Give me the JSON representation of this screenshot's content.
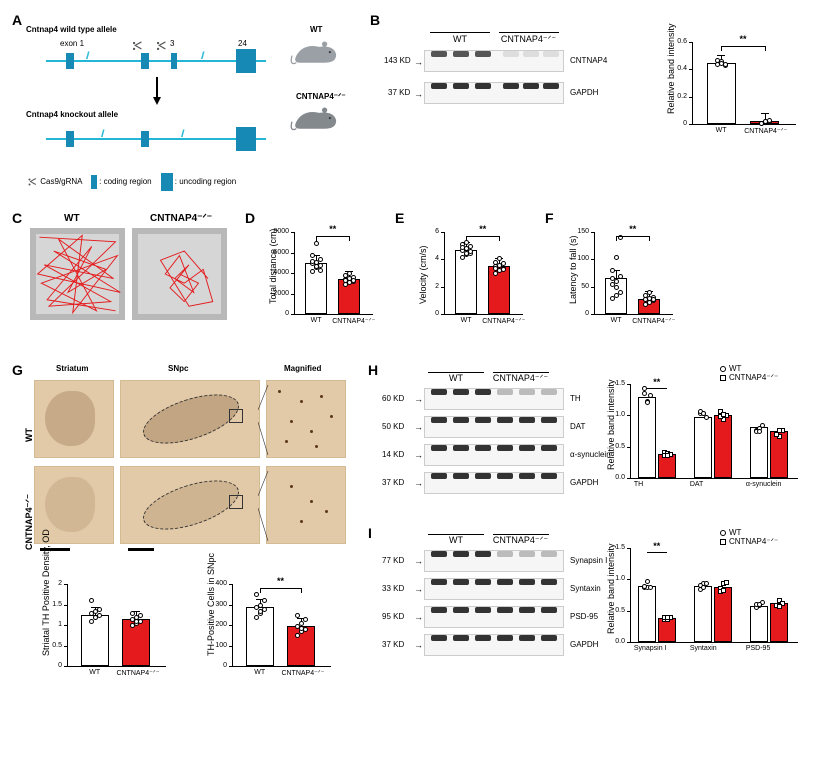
{
  "panels": {
    "A": {
      "title_wt": "Cntnap4 wild type allele",
      "title_ko": "Cntnap4 knockout allele",
      "exons": [
        "exon 1",
        "3",
        "24"
      ],
      "legend": {
        "cas9": "Cas9/gRNA",
        "coding": "coding region",
        "uncoding": "uncoding region"
      },
      "mouse_labels": {
        "wt": "WT",
        "ko": "CNTNAP4⁻ᐟ⁻"
      },
      "colors": {
        "bar": "#24b6d6",
        "exon": "#168ab5"
      }
    },
    "B": {
      "groups": [
        "WT",
        "CNTNAP4⁻ᐟ⁻"
      ],
      "markers": [
        "143 KD",
        "37 KD"
      ],
      "proteins": [
        "CNTNAP4",
        "GAPDH"
      ],
      "chart": {
        "ylabel": "Relative band intensity",
        "ylim": [
          0,
          0.6
        ],
        "ytick": 0.2,
        "values": [
          0.45,
          0.02
        ],
        "bar_colors": [
          "#ffffff",
          "#e41a1c"
        ],
        "sig": "**",
        "points_wt": [
          0.44,
          0.46,
          0.43,
          0.47,
          0.45,
          0.44
        ],
        "points_ko": [
          0.01,
          0.02,
          0.02,
          0.01,
          0.02,
          0.03
        ]
      }
    },
    "C": {
      "labels": [
        "WT",
        "CNTNAP4⁻ᐟ⁻"
      ],
      "track_color": "#e41a1c"
    },
    "D": {
      "ylabel": "Total distance (cm)",
      "ylim": [
        0,
        8000
      ],
      "ytick": 2000,
      "values": [
        5000,
        3400
      ],
      "sig": "**",
      "bar_colors": [
        "#ffffff",
        "#e41a1c"
      ],
      "points_wt": [
        4200,
        4600,
        4800,
        5000,
        5100,
        5400,
        5800,
        6900,
        4300,
        5200,
        4700
      ],
      "points_ko": [
        2900,
        3100,
        3200,
        3400,
        3500,
        3600,
        3800,
        4000,
        3300,
        3350
      ]
    },
    "E": {
      "ylabel": "Velocity (cm/s)",
      "ylim": [
        0,
        6
      ],
      "ytick": 2,
      "values": [
        4.7,
        3.5
      ],
      "sig": "**",
      "bar_colors": [
        "#ffffff",
        "#e41a1c"
      ],
      "points_wt": [
        4.2,
        4.4,
        4.5,
        4.7,
        4.8,
        5.0,
        5.1,
        5.3,
        4.6,
        4.9,
        4.5
      ],
      "points_ko": [
        3.0,
        3.2,
        3.4,
        3.5,
        3.6,
        3.7,
        3.8,
        4.1,
        3.3,
        3.4
      ]
    },
    "F": {
      "ylabel": "Latency to fall (s)",
      "ylim": [
        0,
        150
      ],
      "ytick": 50,
      "values": [
        65,
        28
      ],
      "sig": "**",
      "bar_colors": [
        "#ffffff",
        "#e41a1c"
      ],
      "points_wt": [
        30,
        35,
        40,
        55,
        60,
        70,
        80,
        105,
        140,
        65,
        50
      ],
      "points_ko": [
        18,
        22,
        25,
        28,
        30,
        32,
        35,
        40,
        28,
        27
      ]
    },
    "G": {
      "col_labels": [
        "Striatum",
        "SNpc",
        "Magnified"
      ],
      "row_labels": [
        "WT",
        "CNTNAP4⁻ᐟ⁻"
      ],
      "chart1": {
        "ylabel": "Striatal TH Positive Density, OD",
        "ylim": [
          0,
          2.0
        ],
        "ytick": 0.5,
        "values": [
          1.25,
          1.15
        ],
        "bar_colors": [
          "#ffffff",
          "#e41a1c"
        ],
        "points_wt": [
          1.1,
          1.2,
          1.25,
          1.3,
          1.35,
          1.4,
          1.6,
          1.2
        ],
        "points_ko": [
          1.0,
          1.05,
          1.1,
          1.15,
          1.2,
          1.25,
          1.3,
          1.1
        ]
      },
      "chart2": {
        "ylabel": "TH-Positive Cells in SNpc",
        "ylim": [
          0,
          400
        ],
        "yticks": [
          0,
          100,
          200,
          300,
          400
        ],
        "values": [
          290,
          195
        ],
        "sig": "**",
        "bar_colors": [
          "#ffffff",
          "#e41a1c"
        ],
        "points_wt": [
          240,
          260,
          280,
          290,
          300,
          320,
          350,
          270
        ],
        "points_ko": [
          150,
          170,
          180,
          195,
          210,
          230,
          250,
          185
        ]
      }
    },
    "H": {
      "groups": [
        "WT",
        "CNTNAP4⁻ᐟ⁻"
      ],
      "markers": [
        "60 KD",
        "50 KD",
        "14 KD",
        "37 KD"
      ],
      "proteins": [
        "TH",
        "DAT",
        "α-synuclein",
        "GAPDH"
      ],
      "chart": {
        "ylabel": "Relative band intensity",
        "ylim": [
          0,
          1.5
        ],
        "ytick": 0.5,
        "categories": [
          "TH",
          "DAT",
          "α-synuclein"
        ],
        "wt": [
          1.3,
          0.98,
          0.82
        ],
        "ko": [
          0.38,
          1.0,
          0.75
        ],
        "sig": {
          "TH": "**"
        },
        "legend": {
          "wt": "WT",
          "ko": "CNTNAP4⁻ᐟ⁻"
        }
      }
    },
    "I": {
      "groups": [
        "WT",
        "CNTNAP4⁻ᐟ⁻"
      ],
      "markers": [
        "77 KD",
        "33 KD",
        "95 KD",
        "37 KD"
      ],
      "proteins": [
        "Synapsin I",
        "Syntaxin",
        "PSD-95",
        "GAPDH"
      ],
      "chart": {
        "ylabel": "Relative band intensity",
        "ylim": [
          0,
          1.5
        ],
        "ytick": 0.5,
        "categories": [
          "Synapsin I",
          "Syntaxin",
          "PSD-95"
        ],
        "wt": [
          0.9,
          0.9,
          0.58
        ],
        "ko": [
          0.38,
          0.88,
          0.62
        ],
        "sig": {
          "Synapsin I": "**"
        },
        "legend": {
          "wt": "WT",
          "ko": "CNTNAP4⁻ᐟ⁻"
        }
      }
    }
  },
  "style": {
    "accent_red": "#e41a1c",
    "tan": "#e2c9a8",
    "gray": "#b8b8b8"
  }
}
